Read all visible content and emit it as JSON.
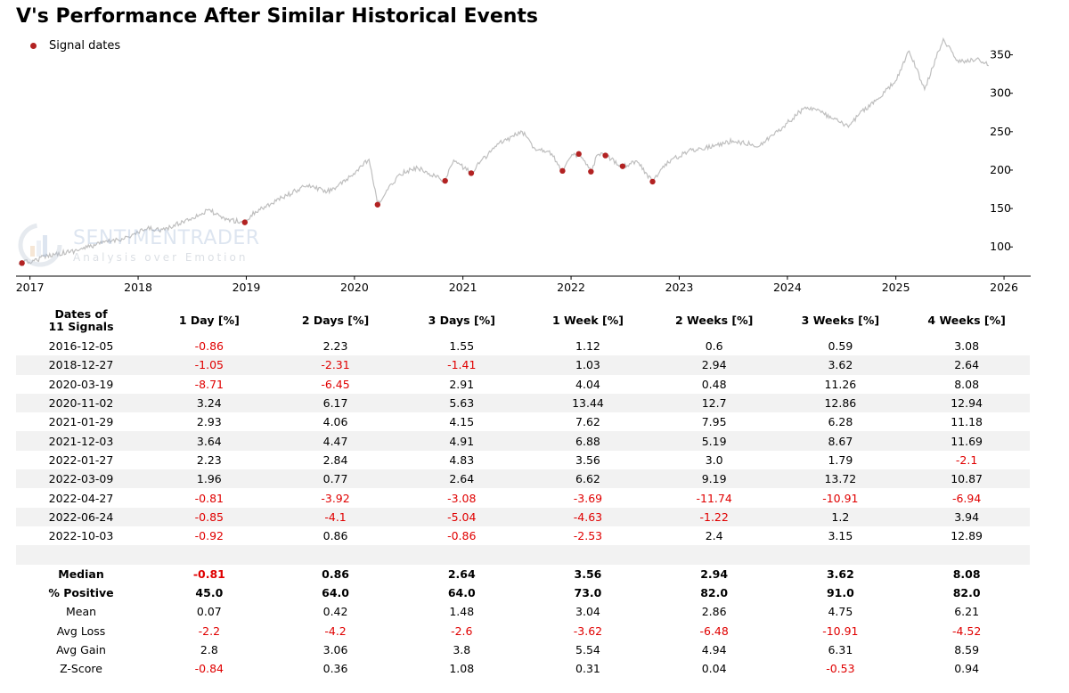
{
  "title": "V's Performance After Similar Historical Events",
  "legend": {
    "label": "Signal dates"
  },
  "watermark": {
    "name": "SENTIMENTRADER",
    "tagline": "Analysis over Emotion"
  },
  "colors": {
    "price_line": "#bfbfbf",
    "signal_marker": "#b22222",
    "negative_text": "#e00000",
    "row_shade": "#f2f2f2"
  },
  "chart_data": {
    "type": "line",
    "y_axis_side": "right",
    "ylim": [
      62,
      375
    ],
    "y_ticks": [
      100,
      150,
      200,
      250,
      300,
      350
    ],
    "x_ticks": [
      "2017",
      "2018",
      "2019",
      "2020",
      "2021",
      "2022",
      "2023",
      "2024",
      "2025",
      "2026"
    ],
    "x_range": [
      "2016-11-15",
      "2026-04-01"
    ],
    "series": [
      {
        "values": [
          [
            "2016-11-25",
            77
          ],
          [
            "2016-12-05",
            79
          ],
          [
            "2017-01-15",
            82
          ],
          [
            "2017-03-01",
            89
          ],
          [
            "2017-06-01",
            95
          ],
          [
            "2017-09-01",
            105
          ],
          [
            "2017-12-01",
            113
          ],
          [
            "2018-02-01",
            124
          ],
          [
            "2018-04-01",
            122
          ],
          [
            "2018-06-01",
            133
          ],
          [
            "2018-09-01",
            148
          ],
          [
            "2018-10-10",
            137
          ],
          [
            "2018-12-27",
            132
          ],
          [
            "2019-02-01",
            146
          ],
          [
            "2019-05-01",
            164
          ],
          [
            "2019-07-25",
            180
          ],
          [
            "2019-10-01",
            172
          ],
          [
            "2019-12-01",
            185
          ],
          [
            "2020-02-19",
            214
          ],
          [
            "2020-03-19",
            155
          ],
          [
            "2020-04-15",
            170
          ],
          [
            "2020-06-01",
            195
          ],
          [
            "2020-08-01",
            203
          ],
          [
            "2020-11-02",
            186
          ],
          [
            "2020-12-01",
            213
          ],
          [
            "2021-01-29",
            196
          ],
          [
            "2021-03-01",
            211
          ],
          [
            "2021-05-01",
            234
          ],
          [
            "2021-07-20",
            250
          ],
          [
            "2021-09-01",
            228
          ],
          [
            "2021-10-20",
            225
          ],
          [
            "2021-12-03",
            199
          ],
          [
            "2021-12-31",
            217
          ],
          [
            "2022-01-27",
            221
          ],
          [
            "2022-03-09",
            198
          ],
          [
            "2022-04-01",
            220
          ],
          [
            "2022-04-27",
            219
          ],
          [
            "2022-06-24",
            205
          ],
          [
            "2022-08-10",
            212
          ],
          [
            "2022-10-03",
            185
          ],
          [
            "2022-11-15",
            208
          ],
          [
            "2023-02-01",
            225
          ],
          [
            "2023-05-01",
            232
          ],
          [
            "2023-07-01",
            238
          ],
          [
            "2023-10-01",
            232
          ],
          [
            "2023-12-31",
            261
          ],
          [
            "2024-03-01",
            282
          ],
          [
            "2024-04-01",
            280
          ],
          [
            "2024-06-01",
            267
          ],
          [
            "2024-07-25",
            256
          ],
          [
            "2024-09-01",
            274
          ],
          [
            "2024-11-01",
            292
          ],
          [
            "2024-12-31",
            316
          ],
          [
            "2025-02-15",
            355
          ],
          [
            "2025-04-08",
            305
          ],
          [
            "2025-06-10",
            371
          ],
          [
            "2025-08-01",
            340
          ],
          [
            "2025-10-01",
            345
          ],
          [
            "2025-11-10",
            336
          ]
        ]
      }
    ],
    "signal_points": [
      [
        "2016-12-05",
        79
      ],
      [
        "2018-12-27",
        132
      ],
      [
        "2020-03-19",
        155
      ],
      [
        "2020-11-02",
        186
      ],
      [
        "2021-01-29",
        196
      ],
      [
        "2021-12-03",
        199
      ],
      [
        "2022-01-27",
        221
      ],
      [
        "2022-03-09",
        198
      ],
      [
        "2022-04-27",
        219
      ],
      [
        "2022-06-24",
        205
      ],
      [
        "2022-10-03",
        185
      ]
    ]
  },
  "table": {
    "header_dates_line1": "Dates of",
    "header_dates_line2": "11 Signals",
    "columns": [
      "1 Day [%]",
      "2 Days [%]",
      "3 Days [%]",
      "1 Week [%]",
      "2 Weeks [%]",
      "3 Weeks [%]",
      "4 Weeks [%]"
    ],
    "rows": [
      [
        "2016-12-05",
        "-0.86",
        "2.23",
        "1.55",
        "1.12",
        "0.6",
        "0.59",
        "3.08"
      ],
      [
        "2018-12-27",
        "-1.05",
        "-2.31",
        "-1.41",
        "1.03",
        "2.94",
        "3.62",
        "2.64"
      ],
      [
        "2020-03-19",
        "-8.71",
        "-6.45",
        "2.91",
        "4.04",
        "0.48",
        "11.26",
        "8.08"
      ],
      [
        "2020-11-02",
        "3.24",
        "6.17",
        "5.63",
        "13.44",
        "12.7",
        "12.86",
        "12.94"
      ],
      [
        "2021-01-29",
        "2.93",
        "4.06",
        "4.15",
        "7.62",
        "7.95",
        "6.28",
        "11.18"
      ],
      [
        "2021-12-03",
        "3.64",
        "4.47",
        "4.91",
        "6.88",
        "5.19",
        "8.67",
        "11.69"
      ],
      [
        "2022-01-27",
        "2.23",
        "2.84",
        "4.83",
        "3.56",
        "3.0",
        "1.79",
        "-2.1"
      ],
      [
        "2022-03-09",
        "1.96",
        "0.77",
        "2.64",
        "6.62",
        "9.19",
        "13.72",
        "10.87"
      ],
      [
        "2022-04-27",
        "-0.81",
        "-3.92",
        "-3.08",
        "-3.69",
        "-11.74",
        "-10.91",
        "-6.94"
      ],
      [
        "2022-06-24",
        "-0.85",
        "-4.1",
        "-5.04",
        "-4.63",
        "-1.22",
        "1.2",
        "3.94"
      ],
      [
        "2022-10-03",
        "-0.92",
        "0.86",
        "-0.86",
        "-2.53",
        "2.4",
        "3.15",
        "12.89"
      ]
    ],
    "summary": [
      [
        "Median",
        "-0.81",
        "0.86",
        "2.64",
        "3.56",
        "2.94",
        "3.62",
        "8.08"
      ],
      [
        "% Positive",
        "45.0",
        "64.0",
        "64.0",
        "73.0",
        "82.0",
        "91.0",
        "82.0"
      ],
      [
        "Mean",
        "0.07",
        "0.42",
        "1.48",
        "3.04",
        "2.86",
        "4.75",
        "6.21"
      ],
      [
        "Avg Loss",
        "-2.2",
        "-4.2",
        "-2.6",
        "-3.62",
        "-6.48",
        "-10.91",
        "-4.52"
      ],
      [
        "Avg Gain",
        "2.8",
        "3.06",
        "3.8",
        "5.54",
        "4.94",
        "6.31",
        "8.59"
      ],
      [
        "Z-Score",
        "-0.84",
        "0.36",
        "1.08",
        "0.31",
        "0.04",
        "-0.53",
        "0.94"
      ]
    ],
    "bold_summary_rows": [
      "Median",
      "% Positive"
    ]
  }
}
